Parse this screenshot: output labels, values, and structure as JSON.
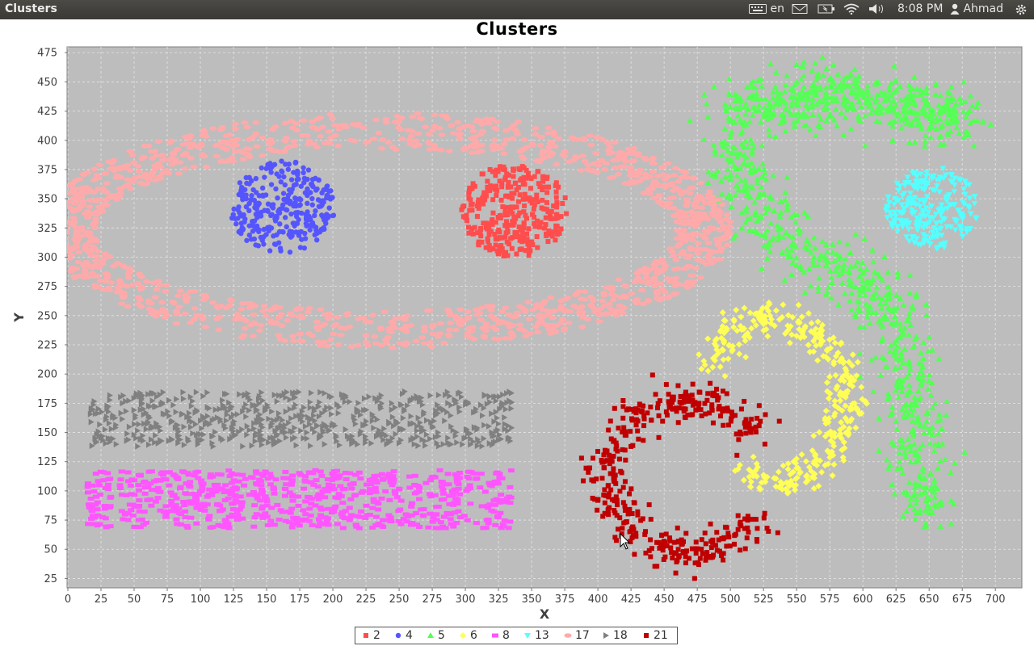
{
  "window": {
    "title": "Clusters"
  },
  "topbar": {
    "keyboard_layout": "en",
    "time": "8:08 PM",
    "user": "Ahmad"
  },
  "colors": {
    "plot_background": "#bdbdbd",
    "grid": "#e6e6e6",
    "c2": "#ff4d4d",
    "c4": "#5555ff",
    "c5": "#55ff55",
    "c6": "#ffff55",
    "c8": "#ff55ff",
    "c13": "#55ffff",
    "c17": "#ffaaaa",
    "c18": "#808080",
    "c21": "#c00000"
  },
  "chart_data": {
    "type": "scatter",
    "title": "Clusters",
    "xlabel": "X",
    "ylabel": "Y",
    "xlim": [
      0,
      720
    ],
    "ylim": [
      17,
      480
    ],
    "x_ticks": [
      0,
      25,
      50,
      75,
      100,
      125,
      150,
      175,
      200,
      225,
      250,
      275,
      300,
      325,
      350,
      375,
      400,
      425,
      450,
      475,
      500,
      525,
      550,
      575,
      600,
      625,
      650,
      675,
      700
    ],
    "y_ticks": [
      25,
      50,
      75,
      100,
      125,
      150,
      175,
      200,
      225,
      250,
      275,
      300,
      325,
      350,
      375,
      400,
      425,
      450,
      475
    ],
    "grid": true,
    "legend_position": "bottom-center",
    "series": [
      {
        "name": "2",
        "marker": "square",
        "color": "#ff4d4d",
        "shape": "disc",
        "center": [
          337,
          340
        ],
        "radius": [
          40,
          40
        ],
        "count": 330
      },
      {
        "name": "4",
        "marker": "circle",
        "color": "#5555ff",
        "shape": "disc",
        "center": [
          162,
          343
        ],
        "radius": [
          40,
          40
        ],
        "count": 300
      },
      {
        "name": "5",
        "marker": "triangle-up",
        "color": "#55ff55",
        "shape": "polyline",
        "path": [
          [
            500,
            425
          ],
          [
            540,
            430
          ],
          [
            575,
            440
          ],
          [
            610,
            435
          ],
          [
            660,
            420
          ],
          [
            680,
            415
          ]
        ],
        "path2": [
          [
            500,
            400
          ],
          [
            510,
            360
          ],
          [
            540,
            310
          ],
          [
            580,
            290
          ],
          [
            620,
            260
          ],
          [
            635,
            200
          ],
          [
            640,
            130
          ],
          [
            650,
            80
          ]
        ],
        "spread": 22,
        "count": 1200
      },
      {
        "name": "6",
        "marker": "diamond",
        "color": "#ffff55",
        "shape": "arc",
        "center": [
          532,
          177
        ],
        "radius": [
          55,
          70
        ],
        "start_deg": -110,
        "end_deg": 155,
        "spread": 12,
        "count": 350
      },
      {
        "name": "8",
        "marker": "rect",
        "color": "#ff55ff",
        "shape": "band",
        "x": [
          15,
          335
        ],
        "y": [
          68,
          118
        ],
        "count": 700
      },
      {
        "name": "13",
        "marker": "triangle-down",
        "color": "#55ffff",
        "shape": "disc",
        "center": [
          652,
          342
        ],
        "radius": [
          35,
          35
        ],
        "count": 230
      },
      {
        "name": "17",
        "marker": "ellipse",
        "color": "#ffaaaa",
        "shape": "ring",
        "center": [
          240,
          323
        ],
        "radius": [
          240,
          85
        ],
        "thickness": 32,
        "count": 1400
      },
      {
        "name": "18",
        "marker": "triangle-right",
        "color": "#808080",
        "shape": "band",
        "x": [
          15,
          335
        ],
        "y": [
          138,
          185
        ],
        "count": 650
      },
      {
        "name": "21",
        "marker": "square",
        "color": "#c00000",
        "shape": "arc",
        "center": [
          468,
          112
        ],
        "radius": [
          60,
          65
        ],
        "start_deg": 30,
        "end_deg": 330,
        "spread": 14,
        "count": 420
      }
    ]
  }
}
